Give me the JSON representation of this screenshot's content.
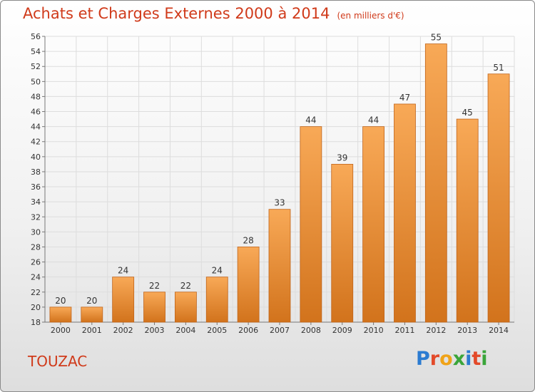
{
  "header": {
    "title": "Achats et Charges Externes 2000 à 2014",
    "subtitle": "(en milliers d'€)"
  },
  "footer": {
    "commune": "TOUZAC",
    "brand": "Proxiti",
    "brand_colors": [
      "#2b7bd1",
      "#e34a2a",
      "#f0a318",
      "#3aa53a",
      "#2b7bd1",
      "#e34a2a",
      "#3aa53a"
    ]
  },
  "chart_data": {
    "type": "bar",
    "title": "Achats et Charges Externes 2000 à 2014",
    "subtitle": "(en milliers d'€)",
    "categories": [
      "2000",
      "2001",
      "2002",
      "2003",
      "2004",
      "2005",
      "2006",
      "2007",
      "2008",
      "2009",
      "2010",
      "2011",
      "2012",
      "2013",
      "2014"
    ],
    "values": [
      20,
      20,
      24,
      22,
      22,
      24,
      28,
      33,
      44,
      39,
      44,
      47,
      55,
      45,
      51
    ],
    "ylim": [
      18,
      56
    ],
    "yticks": [
      "18",
      "20",
      "22",
      "24",
      "26",
      "28",
      "30",
      "32",
      "34",
      "36",
      "38",
      "40",
      "42",
      "44",
      "46",
      "48",
      "50",
      "52",
      "54",
      "56"
    ],
    "grid": true,
    "data_labels": true,
    "bar_color_top": "#f8a957",
    "bar_color_bottom": "#d2731c",
    "bar_edge_color": "#c0641a",
    "grid_color": "#dddddd",
    "title_color": "#d03a1a"
  }
}
